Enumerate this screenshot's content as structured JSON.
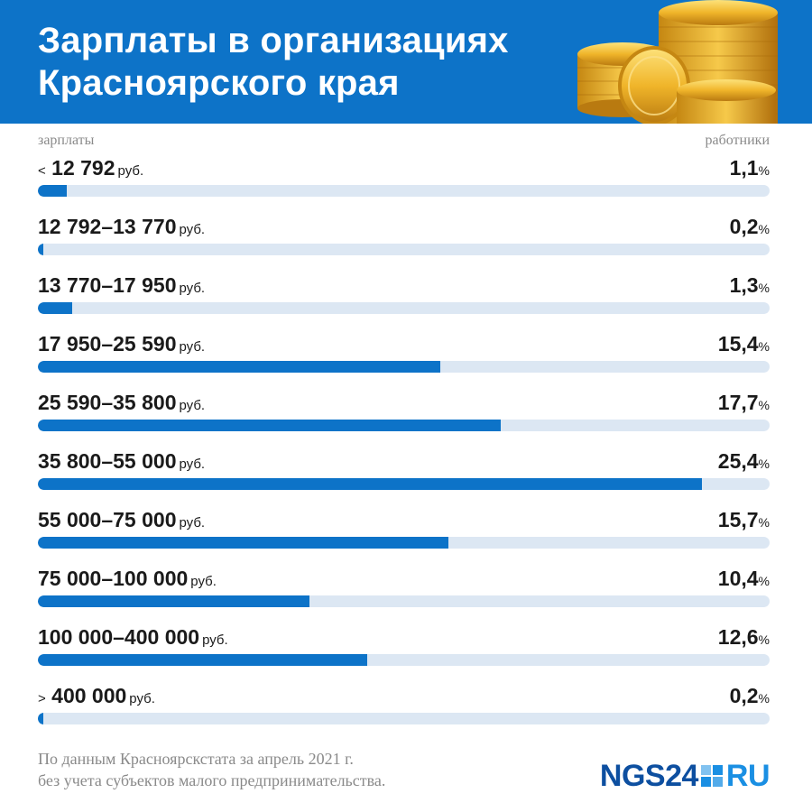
{
  "header": {
    "title_line1": "Зарплаты в организациях",
    "title_line2": "Красноярского края",
    "background_color": "#0d73c8",
    "illustration": "gold-coins-stack"
  },
  "columns": {
    "left": "зарплаты",
    "right": "работники"
  },
  "chart_data": {
    "type": "bar",
    "orientation": "horizontal",
    "categories": [
      "< 12 792 руб.",
      "12 792–13 770 руб.",
      "13 770–17 950 руб.",
      "17 950–25 590 руб.",
      "25 590–35 800 руб.",
      "35 800–55 000 руб.",
      "55 000–75 000 руб.",
      "75 000–100 000 руб.",
      "100 000–400 000 руб.",
      "> 400 000 руб."
    ],
    "values": [
      1.1,
      0.2,
      1.3,
      15.4,
      17.7,
      25.4,
      15.7,
      10.4,
      12.6,
      0.2
    ],
    "rows": [
      {
        "prefix": "<",
        "range": "12 792",
        "unit": "руб.",
        "value": "1,1",
        "pct": "%"
      },
      {
        "prefix": "",
        "range": "12 792–13 770",
        "unit": "руб.",
        "value": "0,2",
        "pct": "%"
      },
      {
        "prefix": "",
        "range": "13 770–17 950",
        "unit": "руб.",
        "value": "1,3",
        "pct": "%"
      },
      {
        "prefix": "",
        "range": "17 950–25 590",
        "unit": "руб.",
        "value": "15,4",
        "pct": "%"
      },
      {
        "prefix": "",
        "range": "25 590–35 800",
        "unit": "руб.",
        "value": "17,7",
        "pct": "%"
      },
      {
        "prefix": "",
        "range": "35 800–55 000",
        "unit": "руб.",
        "value": "25,4",
        "pct": "%"
      },
      {
        "prefix": "",
        "range": "55 000–75 000",
        "unit": "руб.",
        "value": "15,7",
        "pct": "%"
      },
      {
        "prefix": "",
        "range": "75 000–100 000",
        "unit": "руб.",
        "value": "10,4",
        "pct": "%"
      },
      {
        "prefix": "",
        "range": "100 000–400 000",
        "unit": "руб.",
        "value": "12,6",
        "pct": "%"
      },
      {
        "prefix": ">",
        "range": "400 000",
        "unit": "руб.",
        "value": "0,2",
        "pct": "%"
      }
    ],
    "xlim": [
      0,
      28
    ],
    "bar_color": "#0d73c8",
    "track_color": "#dce7f3",
    "grid": false,
    "legend": "none"
  },
  "footer": {
    "source_line1": "По данным Красноярскстата за апрель 2021 г.",
    "source_line2": "без учета субъектов малого предпринимательства.",
    "logo_text": "NGS24",
    "logo_suffix": "RU",
    "logo_color": "#0d4fa0",
    "logo_accent_color": "#1a8fe3"
  }
}
